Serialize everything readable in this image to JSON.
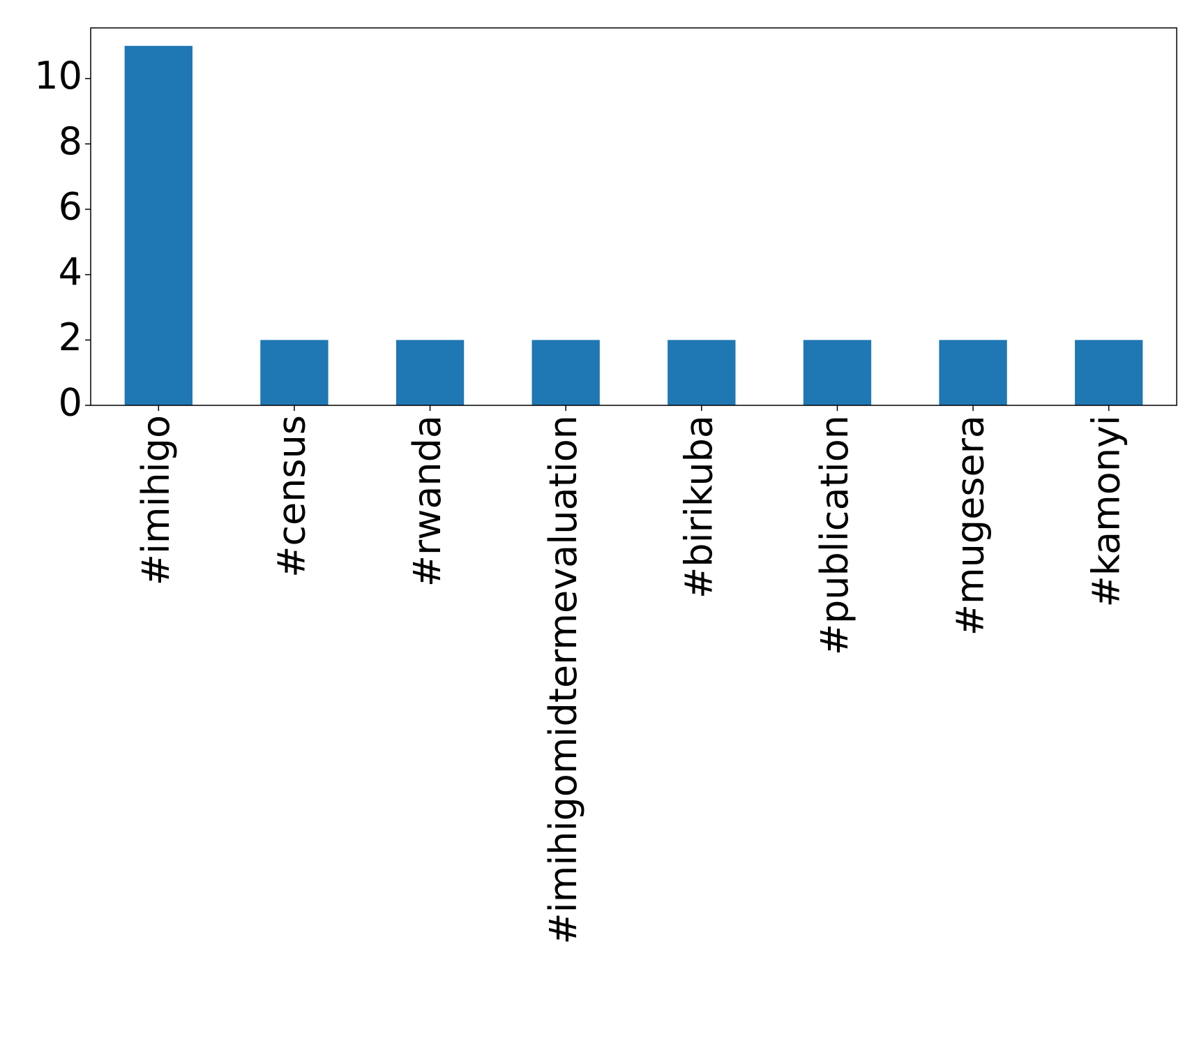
{
  "chart_data": {
    "type": "bar",
    "categories": [
      "#imihigo",
      "#census",
      "#rwanda",
      "#imihigomidtermevaluation",
      "#birikuba",
      "#publication",
      "#mugesera",
      "#kamonyi"
    ],
    "values": [
      11,
      2,
      2,
      2,
      2,
      2,
      2,
      2
    ],
    "color": "#1f77b4",
    "ylim": [
      0,
      11.55
    ],
    "yticks": [
      0,
      2,
      4,
      6,
      8,
      10
    ],
    "grid": false
  }
}
